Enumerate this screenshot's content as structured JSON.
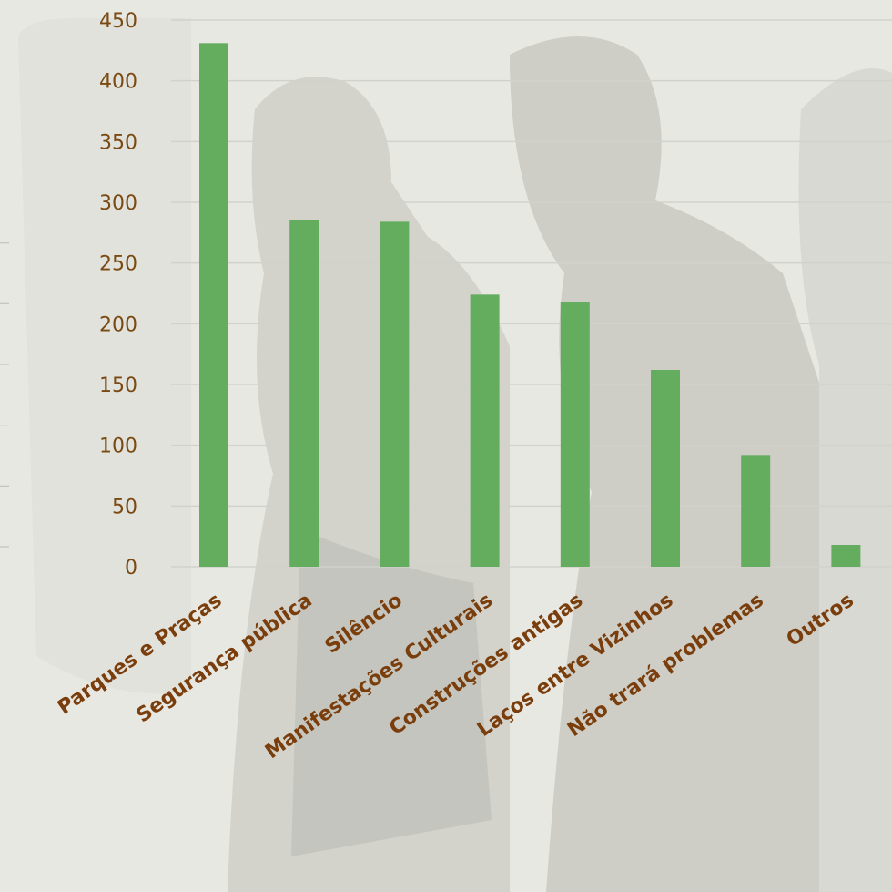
{
  "chart_data": {
    "type": "bar",
    "categories": [
      "Parques e Praças",
      "Segurança pública",
      "Silêncio",
      "Manifestações Culturais",
      "Construções antigas",
      "Laços entre Vizinhos",
      "Não trará problemas",
      "Outros"
    ],
    "values": [
      431,
      285,
      284,
      224,
      218,
      162,
      92,
      18
    ],
    "title": "",
    "xlabel": "",
    "ylabel": "",
    "ylim": [
      0,
      450
    ],
    "yticks": [
      0,
      50,
      100,
      150,
      200,
      250,
      300,
      350,
      400,
      450
    ],
    "grid": true,
    "legend": "none",
    "colors": {
      "bar": "#64ad5f",
      "gridline": "#d2d2cc",
      "tick_text": "#7a4a12",
      "category_text": "#7a3e0c",
      "background": "#e4e4df"
    }
  }
}
